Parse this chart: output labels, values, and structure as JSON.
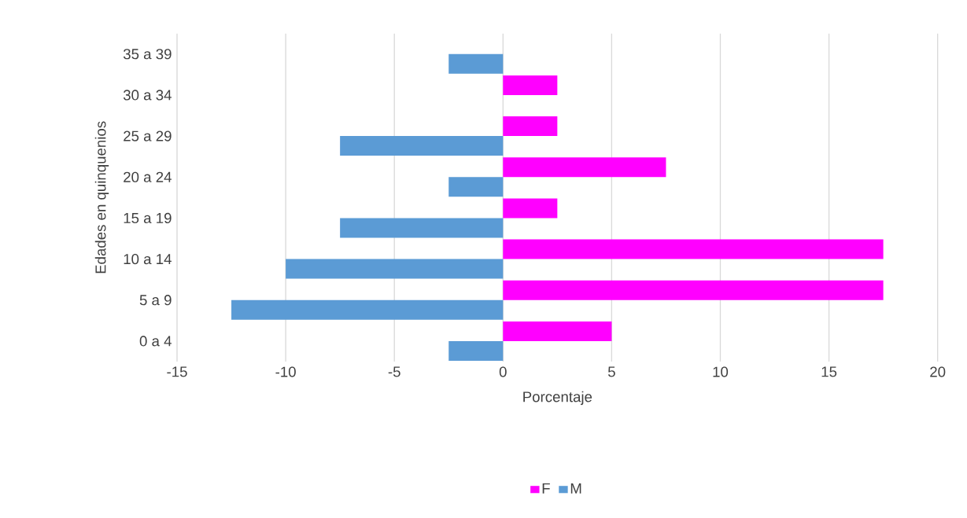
{
  "chart_data": {
    "type": "bar",
    "orientation": "horizontal",
    "xlabel": "Porcentaje",
    "ylabel": "Edades en quinquenios",
    "categories": [
      "35 a 39",
      "30 a 34",
      "25 a 29",
      "20 a 24",
      "15 a 19",
      "10 a 14",
      "5 a 9",
      "0 a 4"
    ],
    "series": [
      {
        "name": "F",
        "color": "#ff00ff",
        "values": [
          0,
          2.5,
          2.5,
          7.5,
          2.5,
          17.5,
          17.5,
          5
        ]
      },
      {
        "name": "M",
        "color": "#5b9bd5",
        "values": [
          -2.5,
          0,
          -7.5,
          -2.5,
          -7.5,
          -10,
          -12.5,
          -2.5
        ]
      }
    ],
    "xlim": [
      -15,
      20
    ],
    "xticks": [
      -15,
      -10,
      -5,
      0,
      5,
      10,
      15,
      20
    ],
    "grid": "x",
    "legend": "bottom"
  }
}
